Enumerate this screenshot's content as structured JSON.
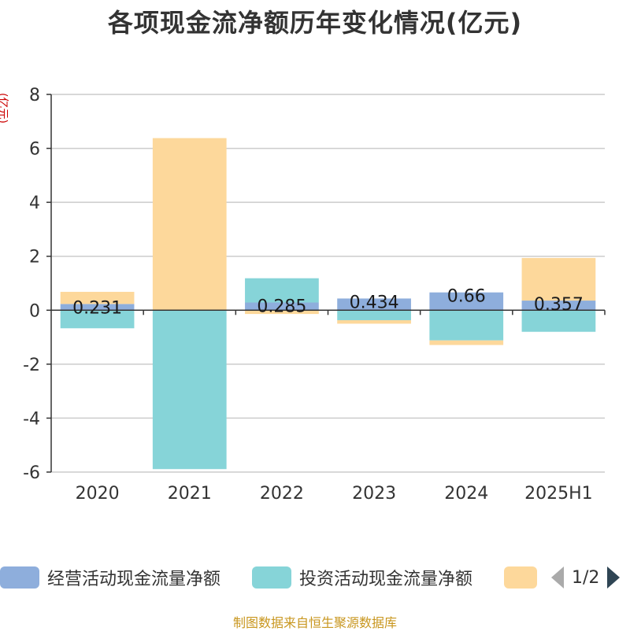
{
  "title": "各项现金流净额历年变化情况(亿元)",
  "y_unit": "(亿元)",
  "source": "制图数据来自恒生聚源数据库",
  "legend": {
    "items": [
      {
        "label": "经营活动现金流量净额",
        "color": "#8eaedc"
      },
      {
        "label": "投资活动现金流量净额",
        "color": "#86d4d8"
      },
      {
        "label": "",
        "color": "#fdd89b"
      }
    ],
    "page": "1/2"
  },
  "chart_data": {
    "type": "bar",
    "stacked": true,
    "categories": [
      "2020",
      "2021",
      "2022",
      "2023",
      "2024",
      "2025H1"
    ],
    "ylim": [
      -6,
      8
    ],
    "yticks": [
      -6,
      -4,
      -2,
      0,
      2,
      4,
      6,
      8
    ],
    "grid": true,
    "legend_position": "bottom",
    "series": [
      {
        "name": "经营活动现金流量净额",
        "color": "#8eaedc",
        "values": [
          0.231,
          -0.02,
          0.285,
          0.434,
          0.66,
          0.357
        ],
        "labels": [
          "0.231",
          "",
          "0.285",
          "0.434",
          "0.66",
          "0.357"
        ]
      },
      {
        "name": "投资活动现金流量净额",
        "color": "#86d4d8",
        "values": [
          -0.67,
          -5.87,
          0.9,
          -0.37,
          -1.12,
          -0.8
        ]
      },
      {
        "name": "",
        "color": "#fdd89b",
        "values": [
          0.45,
          6.38,
          -0.14,
          -0.13,
          -0.17,
          1.58
        ]
      }
    ]
  }
}
